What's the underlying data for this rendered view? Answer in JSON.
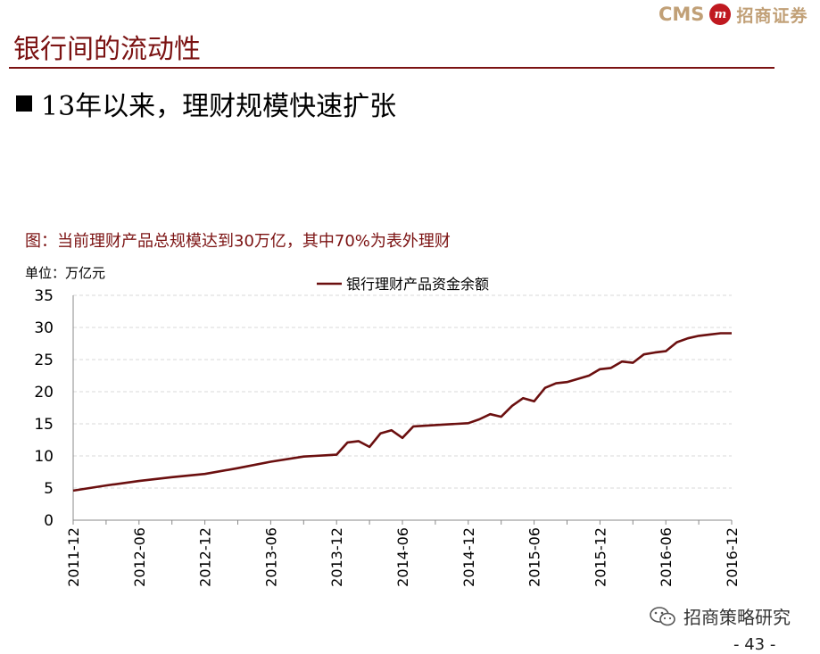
{
  "logo": {
    "brand_en": "CMS",
    "badge": "m",
    "brand_cn": "招商证券"
  },
  "header": {
    "title": "银行间的流动性",
    "bullet": "13年以来，理财规模快速扩张"
  },
  "figure": {
    "caption": "图：当前理财产品总规模达到30万亿，其中70%为表外理财",
    "unit": "单位：万亿元"
  },
  "watermark": {
    "text": "招商策略研究"
  },
  "page_number": "- 43 -",
  "colors": {
    "accent": "#7b1212",
    "line": "#6b0f0f",
    "grid": "#d9d9d9"
  },
  "chart_data": {
    "type": "line",
    "x_tick_labels": [
      "2011-12",
      "2012-06",
      "2012-12",
      "2013-06",
      "2013-12",
      "2014-06",
      "2014-12",
      "2015-06",
      "2015-12",
      "2016-06",
      "2016-12"
    ],
    "ylim": [
      0,
      35
    ],
    "y_ticks": [
      0,
      5,
      10,
      15,
      20,
      25,
      30,
      35
    ],
    "legend_position": "top-center",
    "grid": "horizontal dashed",
    "series": [
      {
        "name": "银行理财产品资金余额",
        "x": [
          "2011-12",
          "2012-03",
          "2012-06",
          "2012-09",
          "2012-12",
          "2013-03",
          "2013-06",
          "2013-09",
          "2013-10",
          "2013-11",
          "2013-12",
          "2014-01",
          "2014-02",
          "2014-03",
          "2014-04",
          "2014-05",
          "2014-06",
          "2014-07",
          "2014-08",
          "2014-09",
          "2014-10",
          "2014-11",
          "2014-12",
          "2015-01",
          "2015-02",
          "2015-03",
          "2015-04",
          "2015-05",
          "2015-06",
          "2015-07",
          "2015-08",
          "2015-09",
          "2015-10",
          "2015-11",
          "2015-12",
          "2016-01",
          "2016-02",
          "2016-03",
          "2016-04",
          "2016-05",
          "2016-06",
          "2016-07",
          "2016-08",
          "2016-09",
          "2016-10",
          "2016-11",
          "2016-12"
        ],
        "values": [
          4.6,
          5.4,
          6.1,
          6.7,
          7.2,
          8.1,
          9.1,
          9.9,
          10.0,
          10.1,
          10.2,
          12.1,
          12.3,
          11.4,
          13.5,
          14.0,
          12.8,
          14.6,
          14.7,
          14.8,
          14.9,
          15.0,
          15.1,
          15.7,
          16.5,
          16.1,
          17.8,
          19.0,
          18.5,
          20.6,
          21.3,
          21.5,
          22.0,
          22.5,
          23.5,
          23.7,
          24.7,
          24.5,
          25.8,
          26.1,
          26.3,
          27.7,
          28.3,
          28.7,
          28.9,
          29.1,
          29.1
        ]
      }
    ]
  }
}
